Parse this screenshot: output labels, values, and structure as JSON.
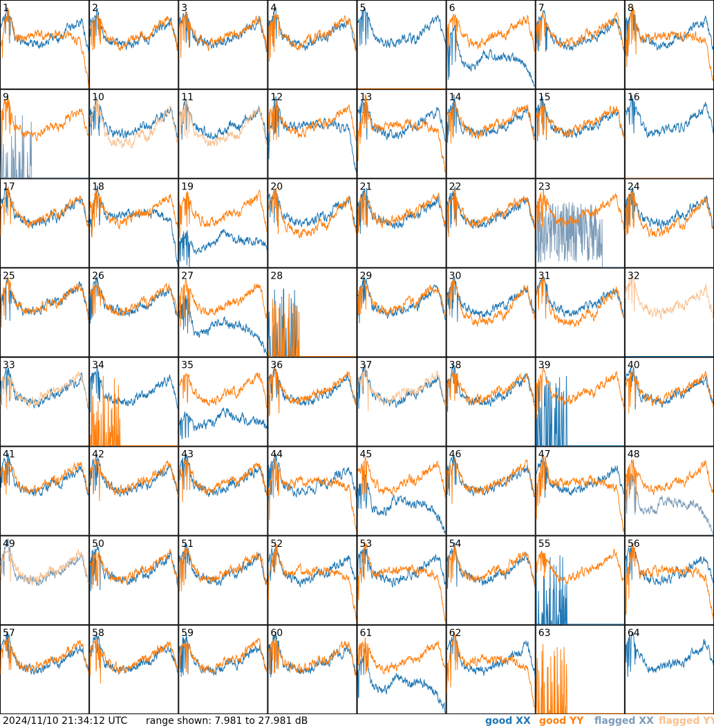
{
  "chart_data": {
    "type": "line",
    "layout": "8x8 small multiples, one panel per tile",
    "ylim_db": [
      7.981,
      27.981
    ],
    "colors": {
      "good_xx": "#1f77b4",
      "good_yy": "#ff7f0e",
      "flagged_xx": "#7b9bb8",
      "flagged_yy": "#f9c08e"
    },
    "profiles": {
      "A": [
        22.7,
        26.0,
        19.5,
        18.7,
        18.0,
        17.7,
        18.2,
        19.8,
        19.2,
        21.5,
        22.0,
        23.5,
        17.0
      ],
      "B": [
        22.0,
        25.5,
        18.5,
        16.5,
        15.8,
        15.8,
        16.2,
        18.2,
        17.0,
        20.2,
        22.0,
        23.5,
        16.0
      ],
      "C": [
        22.0,
        25.0,
        20.5,
        18.5,
        18.0,
        18.5,
        19.5,
        20.5,
        20.0,
        22.0,
        23.0,
        24.0,
        17.0
      ],
      "D": [
        23.0,
        26.0,
        21.0,
        18.5,
        18.0,
        18.5,
        19.0,
        19.5,
        19.0,
        21.5,
        22.5,
        24.0,
        19.0
      ],
      "F": [
        18.0,
        26.5,
        19.5,
        19.5,
        20.0,
        20.3,
        20.0,
        20.3,
        20.0,
        20.0,
        19.5,
        18.5,
        9.0
      ],
      "H": [
        18.0,
        22.0,
        14.0,
        13.0,
        13.5,
        16.0,
        16.0,
        15.0,
        15.0,
        15.0,
        14.0,
        12.0,
        8.5
      ],
      "J": [
        13.0,
        16.0,
        12.0,
        12.5,
        13.0,
        13.5,
        16.0,
        15.0,
        14.0,
        14.0,
        14.0,
        13.5,
        12.5
      ]
    },
    "tiles": [
      {
        "n": 1,
        "xx": "A",
        "yy": "F"
      },
      {
        "n": 2,
        "xx": "A",
        "yy": "C"
      },
      {
        "n": 3,
        "xx": "A",
        "yy": "C"
      },
      {
        "n": 4,
        "xx": "A",
        "yy": "C"
      },
      {
        "n": 5,
        "xx": "D",
        "yy": "flatline"
      },
      {
        "n": 6,
        "xx": "H",
        "yy": "C"
      },
      {
        "n": 7,
        "xx": "A",
        "yy": "C"
      },
      {
        "n": 8,
        "xx": "A",
        "yy": "F"
      },
      {
        "n": 9,
        "xx": "flagged-spikes",
        "yy": "A"
      },
      {
        "n": 10,
        "xx": "A",
        "yy": "flagged-B"
      },
      {
        "n": 11,
        "xx": "A",
        "yy": "flagged-B"
      },
      {
        "n": 12,
        "xx": "F",
        "yy": "C"
      },
      {
        "n": 13,
        "xx": "A",
        "yy": "F"
      },
      {
        "n": 14,
        "xx": "A",
        "yy": "C"
      },
      {
        "n": 15,
        "xx": "A",
        "yy": "C"
      },
      {
        "n": 16,
        "xx": "D",
        "yy": "flagged-flatline"
      },
      {
        "n": 17,
        "xx": "A",
        "yy": "C"
      },
      {
        "n": 18,
        "xx": "F",
        "yy": "C"
      },
      {
        "n": 19,
        "xx": "J",
        "yy": "C"
      },
      {
        "n": 20,
        "xx": "A",
        "yy": "B"
      },
      {
        "n": 21,
        "xx": "A",
        "yy": "C"
      },
      {
        "n": 22,
        "xx": "A",
        "yy": "C"
      },
      {
        "n": 23,
        "xx": "flagged-noise",
        "yy": "C"
      },
      {
        "n": 24,
        "xx": "A",
        "yy": "B"
      },
      {
        "n": 25,
        "xx": "C",
        "yy": "C"
      },
      {
        "n": 26,
        "xx": "A",
        "yy": "C"
      },
      {
        "n": 27,
        "xx": "H",
        "yy": "C"
      },
      {
        "n": 28,
        "xx": "spikes",
        "yy": "spikes"
      },
      {
        "n": 29,
        "xx": "A",
        "yy": "C"
      },
      {
        "n": 30,
        "xx": "A",
        "yy": "B"
      },
      {
        "n": 31,
        "xx": "A",
        "yy": "B"
      },
      {
        "n": 32,
        "xx": "flatline",
        "yy": "flagged-A"
      },
      {
        "n": 33,
        "xx": "A",
        "yy": "flagged-C"
      },
      {
        "n": 34,
        "xx": "A",
        "yy": "spikes"
      },
      {
        "n": 35,
        "xx": "J",
        "yy": "C"
      },
      {
        "n": 36,
        "xx": "A",
        "yy": "C"
      },
      {
        "n": 37,
        "xx": "A",
        "yy": "flagged-C"
      },
      {
        "n": 38,
        "xx": "A",
        "yy": "C"
      },
      {
        "n": 39,
        "xx": "spikes",
        "yy": "C"
      },
      {
        "n": 40,
        "xx": "A",
        "yy": "C"
      },
      {
        "n": 41,
        "xx": "A",
        "yy": "C"
      },
      {
        "n": 42,
        "xx": "A",
        "yy": "C"
      },
      {
        "n": 43,
        "xx": "A",
        "yy": "C"
      },
      {
        "n": 44,
        "xx": "A",
        "yy": "F"
      },
      {
        "n": 45,
        "xx": "H",
        "yy": "C"
      },
      {
        "n": 46,
        "xx": "A",
        "yy": "C"
      },
      {
        "n": 47,
        "xx": "A",
        "yy": "F"
      },
      {
        "n": 48,
        "xx": "flagged-H",
        "yy": "C"
      },
      {
        "n": 49,
        "xx": "flagged-A",
        "yy": "flagged-C"
      },
      {
        "n": 50,
        "xx": "A",
        "yy": "C"
      },
      {
        "n": 51,
        "xx": "A",
        "yy": "C"
      },
      {
        "n": 52,
        "xx": "A",
        "yy": "F"
      },
      {
        "n": 53,
        "xx": "A",
        "yy": "F"
      },
      {
        "n": 54,
        "xx": "A",
        "yy": "C"
      },
      {
        "n": 55,
        "xx": "spikes",
        "yy": "C"
      },
      {
        "n": 56,
        "xx": "A",
        "yy": "F"
      },
      {
        "n": 57,
        "xx": "A",
        "yy": "C"
      },
      {
        "n": 58,
        "xx": "A",
        "yy": "C"
      },
      {
        "n": 59,
        "xx": "A",
        "yy": "C"
      },
      {
        "n": 60,
        "xx": "A",
        "yy": "C"
      },
      {
        "n": 61,
        "xx": "H",
        "yy": "C"
      },
      {
        "n": 62,
        "xx": "A",
        "yy": "F"
      },
      {
        "n": 63,
        "xx": "flatline",
        "yy": "spikes"
      },
      {
        "n": 64,
        "xx": "D",
        "yy": "flatline"
      }
    ]
  },
  "footer": {
    "timestamp": "2024/11/10 21:34:12 UTC",
    "range_text": "range shown: 7.981 to 27.981 dB",
    "legend": {
      "good_xx": "good XX",
      "good_yy": "good YY",
      "flagged_xx": "flagged XX",
      "flagged_yy": "flagged YY"
    }
  }
}
